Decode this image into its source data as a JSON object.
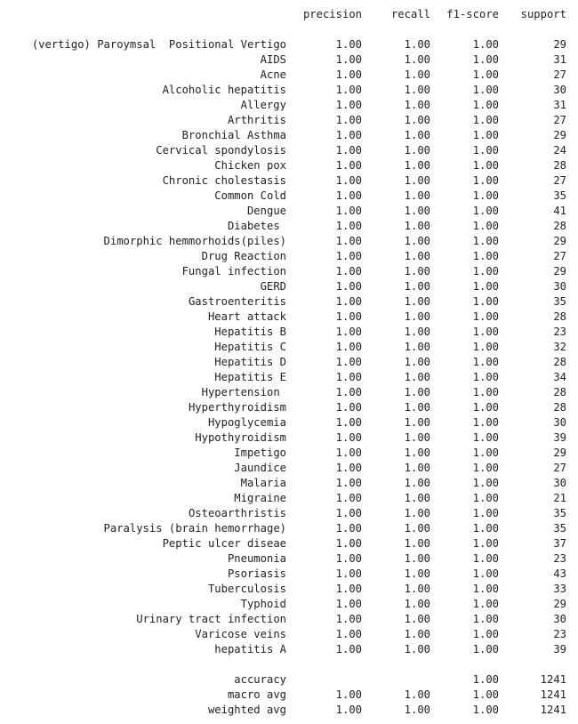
{
  "report": {
    "header": {
      "precision": "precision",
      "recall": "recall",
      "f1": "f1-score",
      "support": "support"
    },
    "rows": [
      {
        "label": "(vertigo) Paroymsal  Positional Vertigo",
        "precision": "1.00",
        "recall": "1.00",
        "f1": "1.00",
        "support": "29"
      },
      {
        "label": "AIDS",
        "precision": "1.00",
        "recall": "1.00",
        "f1": "1.00",
        "support": "31"
      },
      {
        "label": "Acne",
        "precision": "1.00",
        "recall": "1.00",
        "f1": "1.00",
        "support": "27"
      },
      {
        "label": "Alcoholic hepatitis",
        "precision": "1.00",
        "recall": "1.00",
        "f1": "1.00",
        "support": "30"
      },
      {
        "label": "Allergy",
        "precision": "1.00",
        "recall": "1.00",
        "f1": "1.00",
        "support": "31"
      },
      {
        "label": "Arthritis",
        "precision": "1.00",
        "recall": "1.00",
        "f1": "1.00",
        "support": "27"
      },
      {
        "label": "Bronchial Asthma",
        "precision": "1.00",
        "recall": "1.00",
        "f1": "1.00",
        "support": "29"
      },
      {
        "label": "Cervical spondylosis",
        "precision": "1.00",
        "recall": "1.00",
        "f1": "1.00",
        "support": "24"
      },
      {
        "label": "Chicken pox",
        "precision": "1.00",
        "recall": "1.00",
        "f1": "1.00",
        "support": "28"
      },
      {
        "label": "Chronic cholestasis",
        "precision": "1.00",
        "recall": "1.00",
        "f1": "1.00",
        "support": "27"
      },
      {
        "label": "Common Cold",
        "precision": "1.00",
        "recall": "1.00",
        "f1": "1.00",
        "support": "35"
      },
      {
        "label": "Dengue",
        "precision": "1.00",
        "recall": "1.00",
        "f1": "1.00",
        "support": "41"
      },
      {
        "label": "Diabetes ",
        "precision": "1.00",
        "recall": "1.00",
        "f1": "1.00",
        "support": "28"
      },
      {
        "label": "Dimorphic hemmorhoids(piles)",
        "precision": "1.00",
        "recall": "1.00",
        "f1": "1.00",
        "support": "29"
      },
      {
        "label": "Drug Reaction",
        "precision": "1.00",
        "recall": "1.00",
        "f1": "1.00",
        "support": "27"
      },
      {
        "label": "Fungal infection",
        "precision": "1.00",
        "recall": "1.00",
        "f1": "1.00",
        "support": "29"
      },
      {
        "label": "GERD",
        "precision": "1.00",
        "recall": "1.00",
        "f1": "1.00",
        "support": "30"
      },
      {
        "label": "Gastroenteritis",
        "precision": "1.00",
        "recall": "1.00",
        "f1": "1.00",
        "support": "35"
      },
      {
        "label": "Heart attack",
        "precision": "1.00",
        "recall": "1.00",
        "f1": "1.00",
        "support": "28"
      },
      {
        "label": "Hepatitis B",
        "precision": "1.00",
        "recall": "1.00",
        "f1": "1.00",
        "support": "23"
      },
      {
        "label": "Hepatitis C",
        "precision": "1.00",
        "recall": "1.00",
        "f1": "1.00",
        "support": "32"
      },
      {
        "label": "Hepatitis D",
        "precision": "1.00",
        "recall": "1.00",
        "f1": "1.00",
        "support": "28"
      },
      {
        "label": "Hepatitis E",
        "precision": "1.00",
        "recall": "1.00",
        "f1": "1.00",
        "support": "34"
      },
      {
        "label": "Hypertension ",
        "precision": "1.00",
        "recall": "1.00",
        "f1": "1.00",
        "support": "28"
      },
      {
        "label": "Hyperthyroidism",
        "precision": "1.00",
        "recall": "1.00",
        "f1": "1.00",
        "support": "28"
      },
      {
        "label": "Hypoglycemia",
        "precision": "1.00",
        "recall": "1.00",
        "f1": "1.00",
        "support": "30"
      },
      {
        "label": "Hypothyroidism",
        "precision": "1.00",
        "recall": "1.00",
        "f1": "1.00",
        "support": "39"
      },
      {
        "label": "Impetigo",
        "precision": "1.00",
        "recall": "1.00",
        "f1": "1.00",
        "support": "29"
      },
      {
        "label": "Jaundice",
        "precision": "1.00",
        "recall": "1.00",
        "f1": "1.00",
        "support": "27"
      },
      {
        "label": "Malaria",
        "precision": "1.00",
        "recall": "1.00",
        "f1": "1.00",
        "support": "30"
      },
      {
        "label": "Migraine",
        "precision": "1.00",
        "recall": "1.00",
        "f1": "1.00",
        "support": "21"
      },
      {
        "label": "Osteoarthristis",
        "precision": "1.00",
        "recall": "1.00",
        "f1": "1.00",
        "support": "35"
      },
      {
        "label": "Paralysis (brain hemorrhage)",
        "precision": "1.00",
        "recall": "1.00",
        "f1": "1.00",
        "support": "35"
      },
      {
        "label": "Peptic ulcer diseae",
        "precision": "1.00",
        "recall": "1.00",
        "f1": "1.00",
        "support": "37"
      },
      {
        "label": "Pneumonia",
        "precision": "1.00",
        "recall": "1.00",
        "f1": "1.00",
        "support": "23"
      },
      {
        "label": "Psoriasis",
        "precision": "1.00",
        "recall": "1.00",
        "f1": "1.00",
        "support": "43"
      },
      {
        "label": "Tuberculosis",
        "precision": "1.00",
        "recall": "1.00",
        "f1": "1.00",
        "support": "33"
      },
      {
        "label": "Typhoid",
        "precision": "1.00",
        "recall": "1.00",
        "f1": "1.00",
        "support": "29"
      },
      {
        "label": "Urinary tract infection",
        "precision": "1.00",
        "recall": "1.00",
        "f1": "1.00",
        "support": "30"
      },
      {
        "label": "Varicose veins",
        "precision": "1.00",
        "recall": "1.00",
        "f1": "1.00",
        "support": "23"
      },
      {
        "label": "hepatitis A",
        "precision": "1.00",
        "recall": "1.00",
        "f1": "1.00",
        "support": "39"
      }
    ],
    "summary": [
      {
        "label": "accuracy",
        "precision": "",
        "recall": "",
        "f1": "1.00",
        "support": "1241"
      },
      {
        "label": "macro avg",
        "precision": "1.00",
        "recall": "1.00",
        "f1": "1.00",
        "support": "1241"
      },
      {
        "label": "weighted avg",
        "precision": "1.00",
        "recall": "1.00",
        "f1": "1.00",
        "support": "1241"
      }
    ]
  }
}
